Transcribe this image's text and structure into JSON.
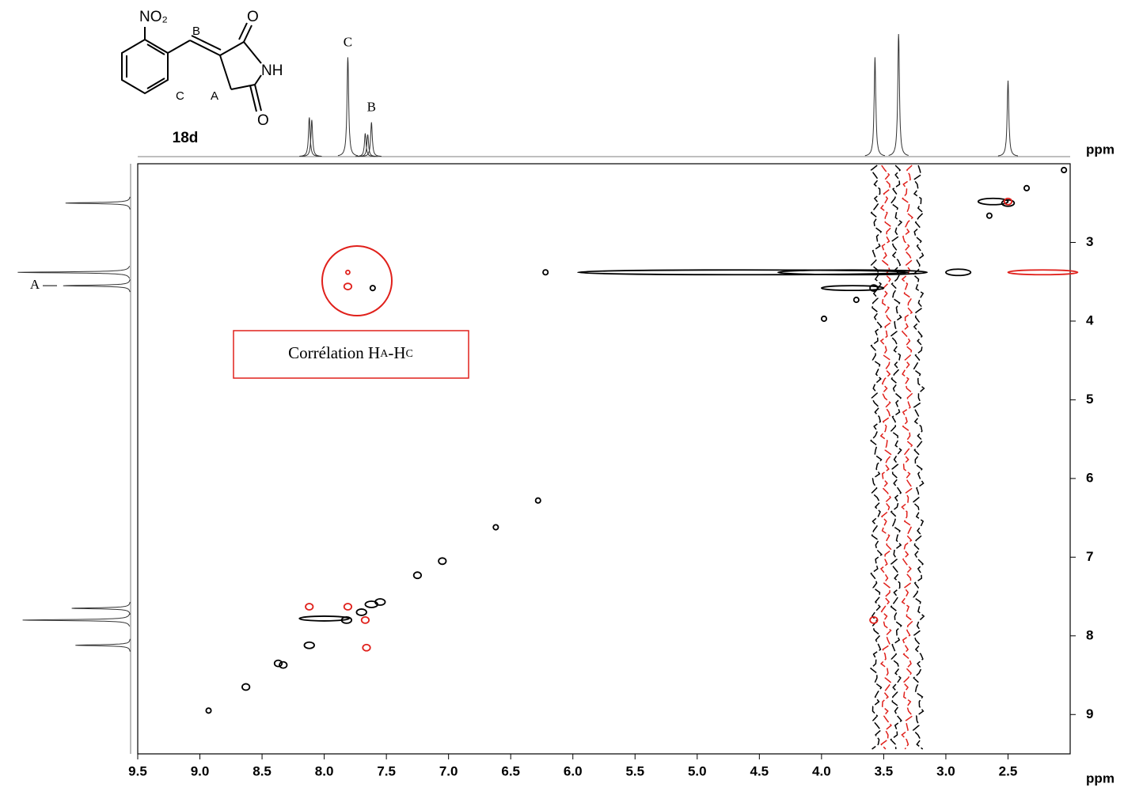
{
  "chart_data": {
    "type": "nmr2d",
    "x_label": "ppm",
    "y_label": "ppm",
    "xlim": [
      9.5,
      2.0
    ],
    "ylim": [
      2.0,
      9.5
    ],
    "xticks": [
      9.5,
      {
        "value": 9,
        "label": "9.0"
      },
      8.5,
      {
        "value": 8,
        "label": "8.0"
      },
      7.5,
      {
        "value": 7,
        "label": "7.0"
      },
      6.5,
      {
        "value": 6,
        "label": "6.0"
      },
      5.5,
      {
        "value": 5,
        "label": "5.0"
      },
      4.5,
      {
        "value": 4,
        "label": "4.0"
      },
      3.5,
      {
        "value": 3,
        "label": "3.0"
      },
      2.5
    ],
    "yticks": [
      3,
      4,
      5,
      6,
      7,
      8,
      9
    ],
    "positive": {
      "color": "#000000",
      "x": [
        8.93,
        8.63,
        8.37,
        8.33,
        8.12,
        7.82,
        7.7,
        7.62,
        7.55,
        7.25,
        7.05,
        6.62,
        6.28,
        3.98,
        3.72,
        3.58,
        2.65,
        2.5,
        2.35,
        2.05,
        7.61,
        6.22,
        4.63,
        3.75,
        3.75,
        2.9,
        2.62,
        8.0
      ],
      "y": [
        8.95,
        8.65,
        8.35,
        8.37,
        8.12,
        7.8,
        7.7,
        7.6,
        7.57,
        7.23,
        7.05,
        6.62,
        6.28,
        3.97,
        3.73,
        3.58,
        2.66,
        2.5,
        2.31,
        2.08,
        3.58,
        3.38,
        3.38,
        3.38,
        3.58,
        3.38,
        2.48,
        7.78
      ],
      "widths": [
        0.02,
        0.03,
        0.03,
        0.03,
        0.04,
        0.04,
        0.04,
        0.05,
        0.04,
        0.03,
        0.03,
        0.02,
        0.02,
        0.02,
        0.02,
        0.03,
        0.02,
        0.05,
        0.02,
        0.02,
        0.02,
        0.02,
        1.33,
        0.6,
        0.25,
        0.1,
        0.12,
        0.2
      ]
    },
    "negative": {
      "color": "#e0201b",
      "x": [
        7.81,
        7.81,
        7.81,
        8.12,
        7.67,
        7.66,
        3.58,
        2.5,
        2.22
      ],
      "y": [
        3.38,
        3.56,
        7.63,
        7.63,
        7.8,
        8.15,
        7.8,
        2.48,
        3.38
      ],
      "widths": [
        0.01,
        0.03,
        0.03,
        0.03,
        0.03,
        0.03,
        0.03,
        0.03,
        0.28
      ]
    },
    "noise_columns": {
      "x": [
        3.56,
        3.48,
        3.4,
        3.31,
        3.22
      ],
      "colors": [
        "#000000",
        "#e0201b",
        "#000000",
        "#e0201b",
        "#000000"
      ]
    },
    "top_projection": {
      "ppm": [
        8.12,
        8.1,
        7.81,
        7.67,
        7.65,
        7.62,
        3.57,
        3.38,
        2.5
      ],
      "heights": [
        0.32,
        0.3,
        0.81,
        0.19,
        0.18,
        0.28,
        0.81,
        1.0,
        0.62
      ],
      "labels": [
        null,
        null,
        "C",
        null,
        null,
        "B",
        null,
        null,
        null
      ]
    },
    "left_projection": {
      "ppm": [
        2.5,
        3.38,
        3.55,
        7.65,
        7.8,
        8.12
      ],
      "heights": [
        0.53,
        0.92,
        0.55,
        0.48,
        0.88,
        0.45
      ],
      "labels": [
        null,
        null,
        "A",
        null,
        null,
        null
      ]
    },
    "annotation": [
      "Corrélation H",
      "A",
      "-H",
      "C"
    ],
    "structure": {
      "name": "18d",
      "atoms": [
        "NO₂",
        "O",
        "NH",
        "O"
      ],
      "positions": [
        "B",
        "C",
        "A"
      ]
    }
  }
}
